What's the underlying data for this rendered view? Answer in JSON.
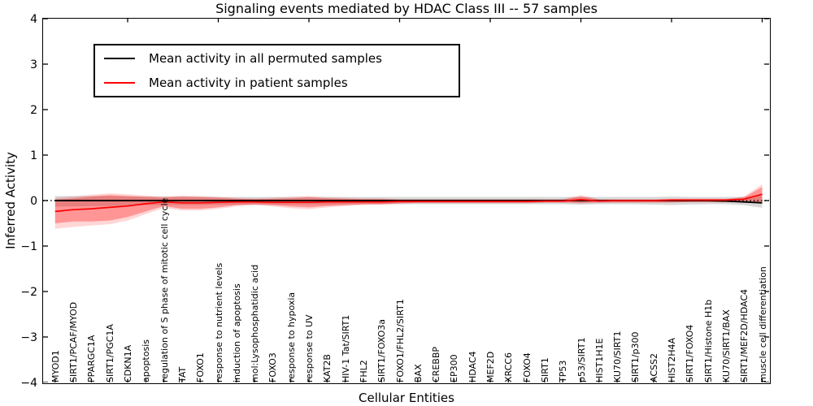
{
  "title": "Signaling events mediated by HDAC Class III -- 57 samples",
  "legend": {
    "items": [
      {
        "label": "Mean activity in all permuted samples",
        "color": "#000000"
      },
      {
        "label": "Mean activity in patient samples",
        "color": "#ff0000"
      }
    ]
  },
  "chart_data": {
    "type": "line",
    "title": "Signaling events mediated by HDAC Class III -- 57 samples",
    "xlabel": "Cellular Entities",
    "ylabel": "Inferred Activity",
    "ylim": [
      -4,
      4
    ],
    "yticks": [
      4,
      3,
      2,
      1,
      0,
      -1,
      -2,
      -3,
      -4
    ],
    "ytick_labels": [
      "4",
      "3",
      "2",
      "1",
      "0",
      "−1",
      "−2",
      "−3",
      "−4"
    ],
    "x_major_tick_every": 5,
    "grid": false,
    "legend_position": "upper left",
    "zero_line": "dotted",
    "colors": {
      "permuted": "#000000",
      "patient": "#ff0000",
      "permuted_band": "rgba(0,0,0,0.15)",
      "patient_band": "rgba(255,0,0,0.22)"
    },
    "categories": [
      "MYOD1",
      "SIRT1/PCAF/MYOD",
      "PPARGC1A",
      "SIRT1/PGC1A",
      "CDKN1A",
      "apoptosis",
      "regulation of S phase of mitotic cell cycle",
      "TAT",
      "FOXO1",
      "response to nutrient levels",
      "induction of apoptosis",
      "mol:Lysophosphatidic acid",
      "FOXO3",
      "response to hypoxia",
      "response to UV",
      "KAT2B",
      "HIV-1 Tat/SIRT1",
      "FHL2",
      "SIRT1/FOXO3a",
      "FOXO1/FHL2/SIRT1",
      "BAX",
      "CREBBP",
      "EP300",
      "HDAC4",
      "MEF2D",
      "XRCC6",
      "FOXO4",
      "SIRT1",
      "TP53",
      "p53/SIRT1",
      "HIST1H1E",
      "KU70/SIRT1",
      "SIRT1/p300",
      "ACSS2",
      "HIST2H4A",
      "SIRT1/FOXO4",
      "SIRT1/Histone H1b",
      "KU70/SIRT1/BAX",
      "SIRT1/MEF2D/HDAC4",
      "muscle cell differentiation"
    ],
    "series": [
      {
        "name": "Mean activity in all permuted samples",
        "color": "#000000",
        "values": [
          0,
          0,
          0,
          0,
          0,
          0,
          0,
          0,
          0,
          0,
          0,
          0,
          0,
          0,
          0,
          0,
          0,
          0,
          0,
          0,
          0,
          0,
          0,
          0,
          0,
          0,
          0,
          0,
          0,
          0,
          0,
          0,
          0,
          0,
          0,
          0,
          0,
          -0.01,
          -0.03,
          -0.05
        ]
      },
      {
        "name": "Mean activity in patient samples",
        "color": "#ff0000",
        "values": [
          -0.24,
          -0.2,
          -0.18,
          -0.15,
          -0.12,
          -0.07,
          -0.03,
          -0.05,
          -0.05,
          -0.04,
          -0.03,
          -0.03,
          -0.04,
          -0.04,
          -0.04,
          -0.03,
          -0.03,
          -0.03,
          -0.03,
          -0.02,
          -0.02,
          -0.02,
          -0.02,
          -0.02,
          -0.02,
          -0.02,
          -0.02,
          -0.01,
          -0.01,
          0.02,
          -0.01,
          0,
          0,
          0,
          0.01,
          0.01,
          0.01,
          0.01,
          0.03,
          0.14
        ]
      }
    ],
    "bands": [
      {
        "name": "permuted-samples-range",
        "color": "rgba(0,0,0,0.15)",
        "low": [
          -0.13,
          -0.13,
          -0.12,
          -0.12,
          -0.11,
          -0.1,
          -0.1,
          -0.1,
          -0.1,
          -0.09,
          -0.09,
          -0.09,
          -0.09,
          -0.09,
          -0.09,
          -0.09,
          -0.08,
          -0.08,
          -0.08,
          -0.08,
          -0.08,
          -0.08,
          -0.08,
          -0.08,
          -0.08,
          -0.08,
          -0.08,
          -0.08,
          -0.08,
          -0.09,
          -0.08,
          -0.08,
          -0.08,
          -0.09,
          -0.1,
          -0.09,
          -0.08,
          -0.08,
          -0.1,
          -0.16
        ],
        "high": [
          0.1,
          0.1,
          0.1,
          0.1,
          0.09,
          0.09,
          0.09,
          0.09,
          0.09,
          0.08,
          0.08,
          0.08,
          0.08,
          0.08,
          0.08,
          0.08,
          0.08,
          0.08,
          0.08,
          0.08,
          0.08,
          0.08,
          0.08,
          0.08,
          0.08,
          0.08,
          0.08,
          0.08,
          0.08,
          0.08,
          0.08,
          0.08,
          0.08,
          0.08,
          0.09,
          0.08,
          0.08,
          0.08,
          0.08,
          0.12
        ]
      },
      {
        "name": "patient-samples-range-outer",
        "color": "rgba(255,0,0,0.16)",
        "low": [
          -0.62,
          -0.58,
          -0.55,
          -0.52,
          -0.44,
          -0.3,
          -0.16,
          -0.22,
          -0.22,
          -0.18,
          -0.13,
          -0.1,
          -0.13,
          -0.17,
          -0.19,
          -0.15,
          -0.12,
          -0.1,
          -0.09,
          -0.07,
          -0.06,
          -0.06,
          -0.06,
          -0.06,
          -0.06,
          -0.06,
          -0.06,
          -0.05,
          -0.05,
          -0.07,
          -0.05,
          -0.05,
          -0.05,
          -0.05,
          -0.05,
          -0.04,
          -0.04,
          -0.04,
          -0.05,
          -0.05
        ],
        "high": [
          0.06,
          0.09,
          0.13,
          0.16,
          0.14,
          0.11,
          0.09,
          0.11,
          0.1,
          0.08,
          0.06,
          0.05,
          0.06,
          0.08,
          0.1,
          0.07,
          0.06,
          0.05,
          0.05,
          0.03,
          0.03,
          0.03,
          0.03,
          0.03,
          0.03,
          0.03,
          0.03,
          0.03,
          0.03,
          0.12,
          0.03,
          0.03,
          0.03,
          0.03,
          0.04,
          0.04,
          0.04,
          0.04,
          0.09,
          0.36
        ]
      },
      {
        "name": "patient-samples-range-inner",
        "color": "rgba(255,0,0,0.30)",
        "low": [
          -0.5,
          -0.46,
          -0.46,
          -0.44,
          -0.36,
          -0.24,
          -0.12,
          -0.18,
          -0.18,
          -0.15,
          -0.1,
          -0.08,
          -0.1,
          -0.13,
          -0.15,
          -0.12,
          -0.1,
          -0.08,
          -0.08,
          -0.06,
          -0.05,
          -0.05,
          -0.05,
          -0.05,
          -0.05,
          -0.05,
          -0.05,
          -0.04,
          -0.04,
          -0.05,
          -0.04,
          -0.04,
          -0.04,
          -0.04,
          -0.04,
          -0.03,
          -0.03,
          -0.03,
          -0.04,
          -0.03
        ],
        "high": [
          0.02,
          0.05,
          0.09,
          0.12,
          0.1,
          0.08,
          0.06,
          0.08,
          0.07,
          0.06,
          0.04,
          0.03,
          0.04,
          0.05,
          0.07,
          0.05,
          0.04,
          0.03,
          0.03,
          0.02,
          0.02,
          0.02,
          0.02,
          0.02,
          0.02,
          0.02,
          0.02,
          0.02,
          0.02,
          0.09,
          0.02,
          0.02,
          0.02,
          0.02,
          0.03,
          0.03,
          0.03,
          0.03,
          0.07,
          0.3
        ]
      }
    ]
  }
}
